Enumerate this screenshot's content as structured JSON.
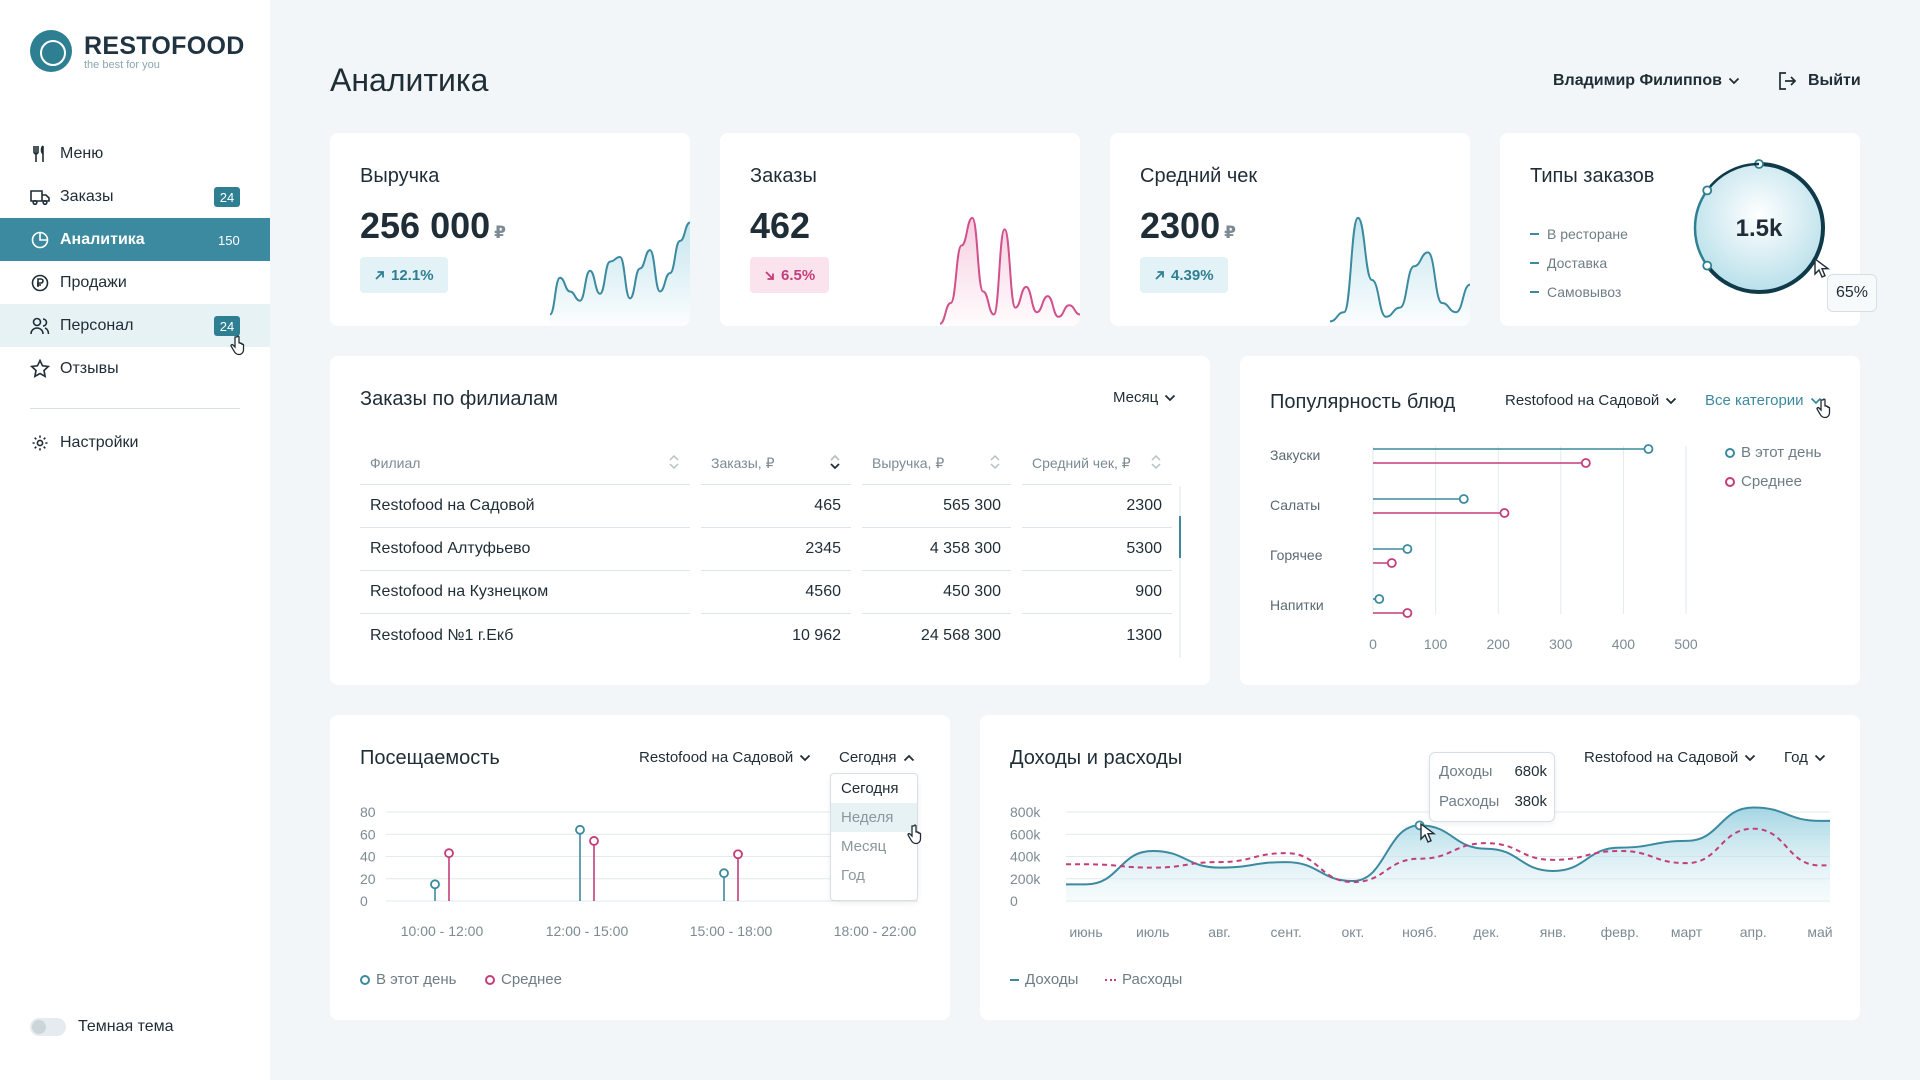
{
  "brand": {
    "name": "RESTOFOOD",
    "tagline": "the best for you"
  },
  "sidebar": {
    "items": [
      {
        "label": "Меню",
        "icon": "fork-knife-icon",
        "badge": ""
      },
      {
        "label": "Заказы",
        "icon": "truck-icon",
        "badge": "24"
      },
      {
        "label": "Аналитика",
        "icon": "pie-chart-icon",
        "badge": "150",
        "active": true
      },
      {
        "label": "Продажи",
        "icon": "coin-icon",
        "badge": ""
      },
      {
        "label": "Персонал",
        "icon": "users-icon",
        "badge": "24"
      },
      {
        "label": "Отзывы",
        "icon": "star-icon",
        "badge": ""
      }
    ],
    "settings": "Настройки",
    "theme_label": "Темная тема"
  },
  "header": {
    "title": "Аналитика",
    "user": "Владимир Филиппов",
    "logout": "Выйти"
  },
  "kpis": [
    {
      "title": "Выручка",
      "value": "256 000",
      "currency": "₽",
      "change": "12.1%",
      "direction": "up"
    },
    {
      "title": "Заказы",
      "value": "462",
      "currency": "",
      "change": "6.5%",
      "direction": "down"
    },
    {
      "title": "Средний чек",
      "value": "2300",
      "currency": "₽",
      "change": "4.39%",
      "direction": "up"
    }
  ],
  "order_types": {
    "title": "Типы заказов",
    "items": [
      "В ресторане",
      "Доставка",
      "Самовывоз"
    ],
    "total": "1.5k",
    "hover_pct": "65%"
  },
  "branches": {
    "title": "Заказы по филиалам",
    "period": "Месяц",
    "columns": [
      "Филиал",
      "Заказы, ₽",
      "Выручка, ₽",
      "Средний чек, ₽"
    ],
    "rows": [
      [
        "Restofood на Садовой",
        "465",
        "565 300",
        "2300"
      ],
      [
        "Restofood Алтуфьево",
        "2345",
        "4 358 300",
        "5300"
      ],
      [
        "Restofood на Кузнецком",
        "4560",
        "450 300",
        "900"
      ],
      [
        "Restofood №1 г.Екб",
        "10 962",
        "24 568 300",
        "1300"
      ]
    ]
  },
  "popularity": {
    "title": "Популярность блюд",
    "branch": "Restofood на Садовой",
    "category": "Все категории",
    "legend": [
      "В этот день",
      "Среднее"
    ]
  },
  "attendance": {
    "title": "Посещаемость",
    "branch": "Restofood на Садовой",
    "period": "Сегодня",
    "options": [
      "Сегодня",
      "Неделя",
      "Месяц",
      "Год"
    ],
    "legend": [
      "В этот день",
      "Среднее"
    ]
  },
  "finance": {
    "title": "Доходы и расходы",
    "branch": "Restofood на Садовой",
    "period": "Год",
    "legend": [
      "Доходы",
      "Расходы"
    ],
    "tooltip": {
      "income_label": "Доходы",
      "income": "680k",
      "expense_label": "Расходы",
      "expense": "380k"
    }
  },
  "chart_data": [
    {
      "type": "area",
      "title": "Выручка",
      "values": [
        10,
        42,
        30,
        22,
        48,
        28,
        56,
        60,
        24,
        50,
        66,
        30,
        46,
        74,
        90
      ]
    },
    {
      "type": "area",
      "title": "Заказы",
      "values": [
        2,
        20,
        70,
        94,
        30,
        10,
        84,
        16,
        34,
        12,
        26,
        8,
        18,
        10
      ]
    },
    {
      "type": "area",
      "title": "Средний чек",
      "values": [
        4,
        12,
        94,
        40,
        8,
        16,
        52,
        64,
        20,
        12,
        36
      ]
    },
    {
      "type": "pie",
      "title": "Типы заказов",
      "categories": [
        "В ресторане",
        "Доставка",
        "Самовывоз"
      ],
      "values": [
        65,
        20,
        15
      ]
    },
    {
      "type": "scatter",
      "title": "Популярность блюд",
      "categories": [
        "Закуски",
        "Салаты",
        "Горячее",
        "Напитки"
      ],
      "x_ticks": [
        0,
        100,
        200,
        300,
        400,
        500
      ],
      "xlim": [
        0,
        500
      ],
      "series": [
        {
          "name": "В этот день",
          "values": [
            440,
            145,
            55,
            10
          ],
          "color": "#3c8aa0"
        },
        {
          "name": "Среднее",
          "values": [
            340,
            210,
            30,
            55
          ],
          "color": "#c43d7b"
        }
      ],
      "legend_position": "right"
    },
    {
      "type": "bar",
      "title": "Посещаемость",
      "categories": [
        "10:00 - 12:00",
        "12:00 - 15:00",
        "15:00 - 18:00",
        "18:00 - 22:00"
      ],
      "y_ticks": [
        0,
        20,
        40,
        60,
        80
      ],
      "ylim": [
        0,
        80
      ],
      "series": [
        {
          "name": "В этот день",
          "values": [
            15,
            64,
            25,
            0
          ],
          "color": "#3c8aa0"
        },
        {
          "name": "Среднее",
          "values": [
            43,
            54,
            42,
            0
          ],
          "color": "#c43d7b"
        }
      ],
      "legend_position": "bottom-left"
    },
    {
      "type": "area",
      "title": "Доходы и расходы",
      "categories": [
        "июнь",
        "июль",
        "авг.",
        "сент.",
        "окт.",
        "нояб.",
        "дек.",
        "янв.",
        "февр.",
        "март",
        "апр.",
        "май"
      ],
      "y_ticks": [
        "0",
        "200k",
        "400k",
        "600k",
        "800k"
      ],
      "ylim": [
        0,
        800
      ],
      "series": [
        {
          "name": "Доходы",
          "values": [
            150,
            450,
            300,
            350,
            180,
            680,
            470,
            270,
            480,
            540,
            840,
            720
          ],
          "color": "#3c8aa0"
        },
        {
          "name": "Расходы",
          "values": [
            330,
            300,
            350,
            430,
            170,
            380,
            520,
            370,
            450,
            340,
            650,
            320
          ],
          "color": "#c43d7b"
        }
      ],
      "legend_position": "bottom-left"
    }
  ]
}
